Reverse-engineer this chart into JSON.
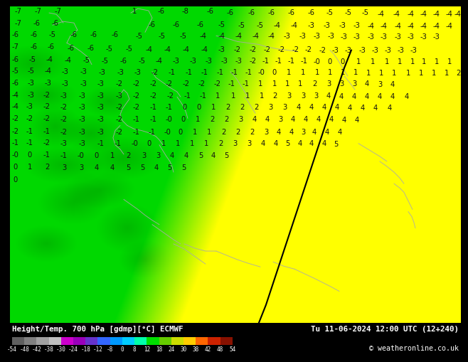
{
  "title_left": "Height/Temp. 700 hPa [gdmp][°C] ECMWF",
  "title_right": "Tu 11-06-2024 12:00 UTC (12+240)",
  "copyright": "© weatheronline.co.uk",
  "colorbar_colors": [
    "#606060",
    "#808080",
    "#a0a0a0",
    "#c0c0c0",
    "#cc00cc",
    "#9900bb",
    "#6633cc",
    "#3366ff",
    "#0099ff",
    "#00ccff",
    "#00ffaa",
    "#00dd00",
    "#66cc00",
    "#ccdd00",
    "#ffcc00",
    "#ff6600",
    "#cc2200",
    "#881100"
  ],
  "cb_labels": [
    "-54",
    "-48",
    "-42",
    "-38",
    "-30",
    "-24",
    "-18",
    "-12",
    "-8",
    "0",
    "8",
    "12",
    "18",
    "24",
    "30",
    "38",
    "42",
    "48",
    "54"
  ],
  "green_dark": "#00aa00",
  "green_bright": "#00ee00",
  "green_medium": "#22cc00",
  "yellow_bright": "#ffff00",
  "yellow_light": "#ffff88",
  "text_color": "#000000",
  "border_color": "#aaaaaa",
  "contour_line_color": "#000000"
}
